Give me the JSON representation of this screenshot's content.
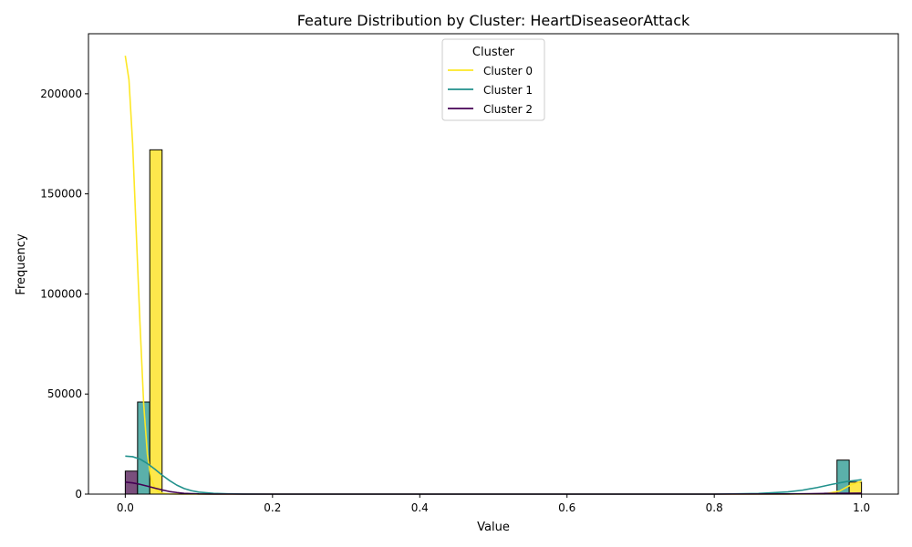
{
  "chart_data": {
    "type": "bar",
    "title": "Feature Distribution by Cluster: HeartDiseaseorAttack",
    "xlabel": "Value",
    "ylabel": "Frequency",
    "xlim": [
      -0.05,
      1.05
    ],
    "ylim": [
      0,
      230000
    ],
    "x_ticks": [
      0.0,
      0.2,
      0.4,
      0.6,
      0.8,
      1.0
    ],
    "x_tick_labels": [
      "0.0",
      "0.2",
      "0.4",
      "0.6",
      "0.8",
      "1.0"
    ],
    "y_ticks": [
      0,
      50000,
      100000,
      150000,
      200000
    ],
    "y_tick_labels": [
      "0",
      "50000",
      "100000",
      "150000",
      "200000"
    ],
    "grid": false,
    "legend": {
      "title": "Cluster",
      "placement": "upper center"
    },
    "bars": [
      {
        "series": "Cluster 2",
        "x0": 0.0,
        "x1": 0.0167,
        "value": 11500
      },
      {
        "series": "Cluster 1",
        "x0": 0.0167,
        "x1": 0.0333,
        "value": 46000
      },
      {
        "series": "Cluster 0",
        "x0": 0.0333,
        "x1": 0.05,
        "value": 172000
      },
      {
        "series": "Cluster 2",
        "x0": 0.95,
        "x1": 0.9667,
        "value": 500
      },
      {
        "series": "Cluster 1",
        "x0": 0.9667,
        "x1": 0.9833,
        "value": 17000
      },
      {
        "series": "Cluster 0",
        "x0": 0.9833,
        "x1": 1.0,
        "value": 6000
      }
    ],
    "series": [
      {
        "name": "Cluster 0",
        "color": "#fde725",
        "bar_color": "#fde74c",
        "kde": {
          "x": [
            0.0,
            0.005,
            0.01,
            0.015,
            0.02,
            0.025,
            0.03,
            0.035,
            0.04,
            0.045,
            0.05,
            0.06,
            0.08,
            0.1,
            0.3,
            0.5,
            0.7,
            0.9,
            0.95,
            0.97,
            0.985,
            1.0
          ],
          "y": [
            219000,
            207000,
            175000,
            130000,
            85000,
            45000,
            20000,
            8000,
            3000,
            1200,
            500,
            100,
            0,
            0,
            0,
            0,
            0,
            0,
            100,
            1500,
            4500,
            6500
          ]
        }
      },
      {
        "name": "Cluster 1",
        "color": "#21918c",
        "bar_color": "#5bb0aa",
        "kde": {
          "x": [
            0.0,
            0.01,
            0.02,
            0.03,
            0.04,
            0.05,
            0.06,
            0.07,
            0.08,
            0.09,
            0.1,
            0.12,
            0.14,
            0.16,
            0.2,
            0.4,
            0.6,
            0.8,
            0.86,
            0.9,
            0.92,
            0.94,
            0.96,
            0.98,
            1.0
          ],
          "y": [
            19000,
            18700,
            17500,
            15300,
            12500,
            9500,
            6800,
            4500,
            2800,
            1700,
            1000,
            400,
            150,
            50,
            0,
            0,
            0,
            0,
            300,
            1100,
            2000,
            3300,
            4900,
            6300,
            7200
          ]
        }
      },
      {
        "name": "Cluster 2",
        "color": "#440154",
        "bar_color": "#7a4f7d",
        "kde": {
          "x": [
            0.0,
            0.01,
            0.02,
            0.03,
            0.04,
            0.05,
            0.06,
            0.07,
            0.08,
            0.1,
            0.12,
            0.2,
            0.4,
            0.6,
            0.8,
            0.9,
            0.95,
            1.0
          ],
          "y": [
            6000,
            5600,
            4900,
            4000,
            3000,
            2100,
            1300,
            800,
            400,
            100,
            0,
            0,
            0,
            0,
            0,
            100,
            300,
            500
          ]
        }
      }
    ]
  }
}
